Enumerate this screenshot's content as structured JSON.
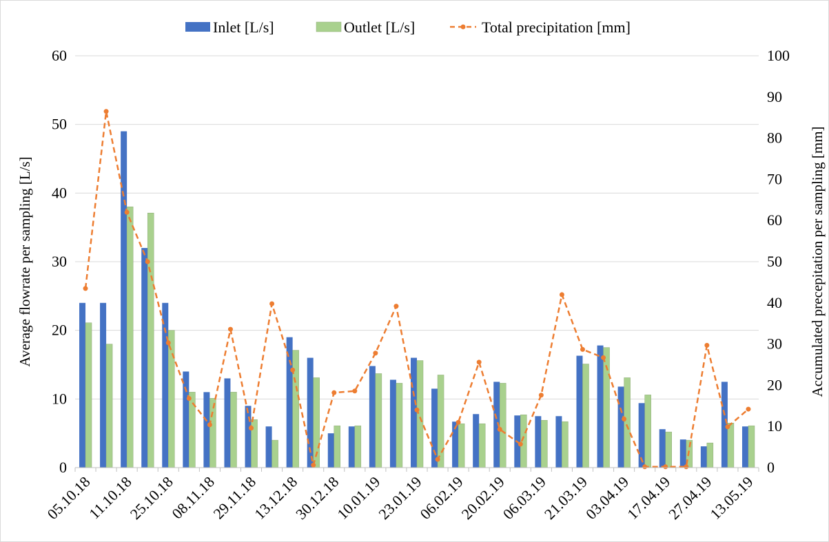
{
  "chart_data": {
    "type": "bar",
    "title": "",
    "x_tick_labels": [
      "05.10.18",
      "11.10.18",
      "25.10.18",
      "08.11.18",
      "29.11.18",
      "13.12.18",
      "30.12.18",
      "10.01.19",
      "23.01.19",
      "06.02.19",
      "20.02.19",
      "06.03.19",
      "21.03.19",
      "03.04.19",
      "17.04.19",
      "27.04.19",
      "13.05.19"
    ],
    "ylabel_left": "Average flowrate per sampling [L/s]",
    "ylabel_right": "Accumulated precepitation per sampling [mm]",
    "ylim_left": [
      0,
      60
    ],
    "ylim_right": [
      0,
      100
    ],
    "yticks_left": [
      0,
      10,
      20,
      30,
      40,
      50,
      60
    ],
    "yticks_right": [
      0,
      10,
      20,
      30,
      40,
      50,
      60,
      70,
      80,
      90,
      100
    ],
    "grid": true,
    "legend_position": "top",
    "series": [
      {
        "name": "Inlet [L/s]",
        "kind": "bar",
        "axis": "left",
        "color": "#4472C4",
        "values": [
          24,
          24,
          49,
          32,
          24,
          14,
          11,
          13,
          9,
          6,
          19,
          16,
          5,
          6,
          14.8,
          12.8,
          16,
          11.5,
          6.7,
          7.8,
          12.5,
          7.6,
          7.5,
          7.5,
          16.3,
          17.8,
          11.8,
          9.4,
          5.6,
          4.1,
          3.1,
          12.5,
          6
        ]
      },
      {
        "name": "Outlet [L/s]",
        "kind": "bar",
        "axis": "left",
        "color": "#A9D18E",
        "values": [
          21.1,
          18,
          38,
          37.1,
          20,
          11,
          10.1,
          11,
          7,
          4,
          17.1,
          13.1,
          6.1,
          6.1,
          13.7,
          12.3,
          15.6,
          13.5,
          6.4,
          6.4,
          12.3,
          7.7,
          6.9,
          6.7,
          15.1,
          17.5,
          13.1,
          10.6,
          5.2,
          4,
          3.6,
          6.5,
          6.1
        ]
      },
      {
        "name": "Total precipitation [mm]",
        "kind": "line",
        "axis": "right",
        "color": "#ED7D31",
        "dashed": true,
        "values": [
          43.5,
          86.5,
          62,
          50,
          30.3,
          16.8,
          10.4,
          33.6,
          9.6,
          39.8,
          23.7,
          0.6,
          18.2,
          18.6,
          27.8,
          39.2,
          14,
          2,
          11,
          25.6,
          9.3,
          5.7,
          17.6,
          42,
          28.7,
          26.7,
          11.8,
          0.2,
          0.2,
          0.2,
          29.7,
          9.9,
          14.2
        ]
      }
    ]
  }
}
